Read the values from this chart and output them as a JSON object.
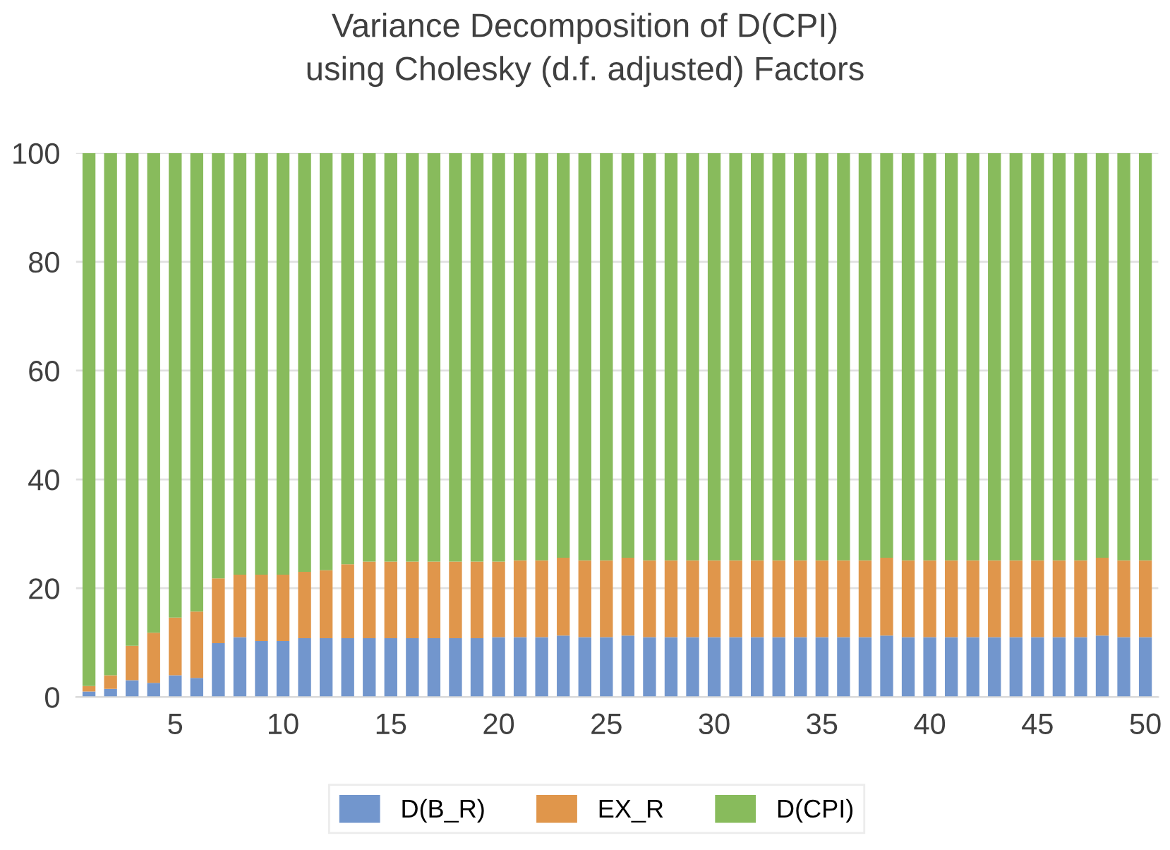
{
  "chart_data": {
    "type": "bar",
    "stacked": true,
    "title": "Variance Decomposition of D(CPI)\nusing Cholesky (d.f. adjusted) Factors",
    "categories": [
      null,
      null,
      null,
      null,
      "5",
      null,
      null,
      null,
      null,
      "10",
      null,
      null,
      null,
      null,
      "15",
      null,
      null,
      null,
      null,
      "20",
      null,
      null,
      null,
      null,
      "25",
      null,
      null,
      null,
      null,
      "30",
      null,
      null,
      null,
      null,
      "35",
      null,
      null,
      null,
      null,
      "40",
      null,
      null,
      null,
      null,
      "45",
      null,
      null,
      null,
      null,
      "50"
    ],
    "series": [
      {
        "name": "D(B_R)",
        "color": "#7296cd",
        "values": [
          1.0,
          1.5,
          3.1,
          2.6,
          4.0,
          3.5,
          9.9,
          11.0,
          10.3,
          10.3,
          10.8,
          10.8,
          10.8,
          10.8,
          10.8,
          10.8,
          10.8,
          10.8,
          10.8,
          11.0,
          11.0,
          11.0,
          11.3,
          11.0,
          11.0,
          11.3,
          11.0,
          11.0,
          11.0,
          11.0,
          11.0,
          11.0,
          11.0,
          11.0,
          11.0,
          11.0,
          11.0,
          11.3,
          11.0,
          11.0,
          11.0,
          11.0,
          11.0,
          11.0,
          11.0,
          11.0,
          11.0,
          11.3,
          11.0,
          11.0
        ]
      },
      {
        "name": "EX_R",
        "color": "#e0964b",
        "values": [
          1.0,
          2.5,
          6.3,
          9.2,
          10.6,
          12.2,
          11.9,
          11.5,
          12.2,
          12.2,
          12.2,
          12.5,
          13.6,
          14.1,
          14.1,
          14.1,
          14.1,
          14.1,
          14.1,
          13.9,
          14.1,
          14.1,
          14.3,
          14.1,
          14.1,
          14.3,
          14.1,
          14.1,
          14.1,
          14.1,
          14.1,
          14.1,
          14.1,
          14.1,
          14.1,
          14.1,
          14.1,
          14.3,
          14.1,
          14.1,
          14.1,
          14.1,
          14.1,
          14.1,
          14.1,
          14.1,
          14.1,
          14.3,
          14.1,
          14.1
        ]
      },
      {
        "name": "D(CPI)",
        "color": "#88bb5c",
        "values": [
          98.0,
          96.0,
          90.6,
          88.2,
          85.4,
          84.3,
          78.2,
          77.5,
          77.5,
          77.5,
          77.0,
          76.7,
          75.6,
          75.1,
          75.1,
          75.1,
          75.1,
          75.1,
          75.1,
          75.1,
          74.9,
          74.9,
          74.4,
          74.9,
          74.9,
          74.4,
          74.9,
          74.9,
          74.9,
          74.9,
          74.9,
          74.9,
          74.9,
          74.9,
          74.9,
          74.9,
          74.9,
          74.4,
          74.9,
          74.9,
          74.9,
          74.9,
          74.9,
          74.9,
          74.9,
          74.9,
          74.9,
          74.4,
          74.9,
          74.9
        ]
      }
    ],
    "ylim": [
      0,
      100
    ],
    "yticks": [
      0,
      20,
      40,
      60,
      80,
      100
    ],
    "grid": "y",
    "legend": "bottom"
  }
}
